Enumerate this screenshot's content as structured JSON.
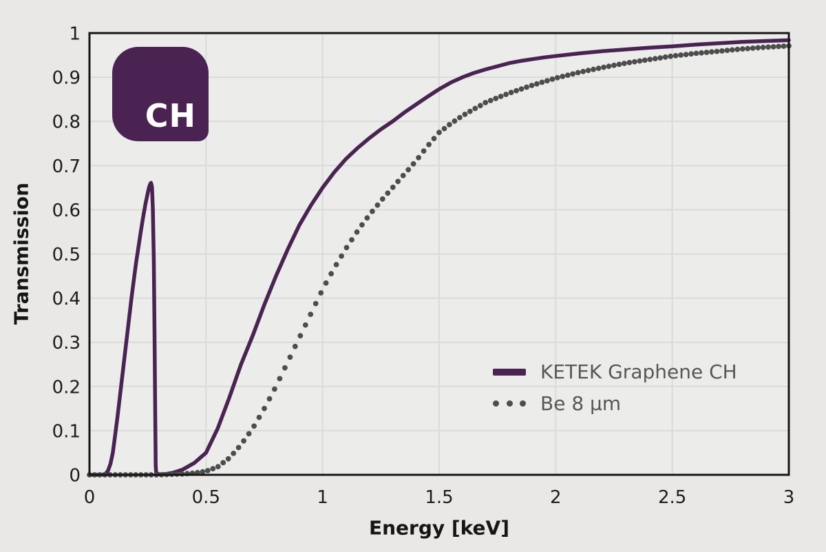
{
  "figure": {
    "background": "#e9e8e7",
    "plot_background": "#ececeb",
    "grid_color": "#dadad9",
    "axis_color": "#161616"
  },
  "badge": {
    "label": "CH",
    "background": "#4a2352",
    "text_color": "#ffffff"
  },
  "chart_data": {
    "type": "line",
    "title": "",
    "xlabel": "Energy [keV]",
    "ylabel": "Transmission",
    "xlim": [
      0,
      3
    ],
    "ylim": [
      0,
      1
    ],
    "x_tick_values": [
      0,
      0.5,
      1,
      1.5,
      2,
      2.5,
      3
    ],
    "x_tick_labels": [
      "0",
      "0.5",
      "1",
      "1.5",
      "2",
      "2.5",
      "3"
    ],
    "y_tick_values": [
      0,
      0.1,
      0.2,
      0.3,
      0.4,
      0.5,
      0.6,
      0.7,
      0.8,
      0.9,
      1
    ],
    "y_tick_labels": [
      "0",
      "0.1",
      "0.2",
      "0.3",
      "0.4",
      "0.5",
      "0.6",
      "0.7",
      "0.8",
      "0.9",
      "1"
    ],
    "grid": true,
    "legend_position": "lower-right",
    "series": [
      {
        "name": "KETEK Graphene CH",
        "line_style": "solid",
        "color": "#4a2352",
        "points": [
          [
            0,
            0
          ],
          [
            0.05,
            0
          ],
          [
            0.06,
            0.001
          ],
          [
            0.07,
            0.003
          ],
          [
            0.08,
            0.01
          ],
          [
            0.09,
            0.025
          ],
          [
            0.1,
            0.05
          ],
          [
            0.11,
            0.09
          ],
          [
            0.12,
            0.13
          ],
          [
            0.13,
            0.175
          ],
          [
            0.14,
            0.22
          ],
          [
            0.15,
            0.265
          ],
          [
            0.16,
            0.31
          ],
          [
            0.17,
            0.355
          ],
          [
            0.18,
            0.4
          ],
          [
            0.19,
            0.44
          ],
          [
            0.2,
            0.48
          ],
          [
            0.21,
            0.515
          ],
          [
            0.22,
            0.55
          ],
          [
            0.23,
            0.583
          ],
          [
            0.24,
            0.613
          ],
          [
            0.25,
            0.638
          ],
          [
            0.255,
            0.65
          ],
          [
            0.26,
            0.658
          ],
          [
            0.264,
            0.661
          ],
          [
            0.268,
            0.652
          ],
          [
            0.272,
            0.6
          ],
          [
            0.276,
            0.48
          ],
          [
            0.279,
            0.32
          ],
          [
            0.282,
            0.14
          ],
          [
            0.284,
            0.02
          ],
          [
            0.286,
            0.004
          ],
          [
            0.3,
            0.001
          ],
          [
            0.33,
            0.002
          ],
          [
            0.36,
            0.005
          ],
          [
            0.4,
            0.012
          ],
          [
            0.45,
            0.027
          ],
          [
            0.5,
            0.05
          ],
          [
            0.55,
            0.105
          ],
          [
            0.6,
            0.175
          ],
          [
            0.65,
            0.25
          ],
          [
            0.7,
            0.315
          ],
          [
            0.75,
            0.385
          ],
          [
            0.8,
            0.45
          ],
          [
            0.85,
            0.51
          ],
          [
            0.9,
            0.565
          ],
          [
            0.95,
            0.61
          ],
          [
            1.0,
            0.65
          ],
          [
            1.05,
            0.685
          ],
          [
            1.1,
            0.715
          ],
          [
            1.15,
            0.74
          ],
          [
            1.2,
            0.762
          ],
          [
            1.25,
            0.782
          ],
          [
            1.3,
            0.8
          ],
          [
            1.35,
            0.82
          ],
          [
            1.4,
            0.838
          ],
          [
            1.45,
            0.856
          ],
          [
            1.5,
            0.873
          ],
          [
            1.55,
            0.888
          ],
          [
            1.6,
            0.9
          ],
          [
            1.65,
            0.91
          ],
          [
            1.7,
            0.918
          ],
          [
            1.75,
            0.925
          ],
          [
            1.8,
            0.932
          ],
          [
            1.85,
            0.937
          ],
          [
            1.9,
            0.941
          ],
          [
            1.95,
            0.945
          ],
          [
            2.0,
            0.948
          ],
          [
            2.1,
            0.954
          ],
          [
            2.2,
            0.959
          ],
          [
            2.3,
            0.963
          ],
          [
            2.4,
            0.967
          ],
          [
            2.5,
            0.97
          ],
          [
            2.6,
            0.974
          ],
          [
            2.7,
            0.977
          ],
          [
            2.8,
            0.98
          ],
          [
            2.9,
            0.982
          ],
          [
            3.0,
            0.984
          ]
        ]
      },
      {
        "name": "Be 8 μm",
        "line_style": "dotted",
        "color": "#4d4d4d",
        "points": [
          [
            0,
            0
          ],
          [
            0.3,
            0
          ],
          [
            0.35,
            0.001
          ],
          [
            0.4,
            0.002
          ],
          [
            0.45,
            0.004
          ],
          [
            0.5,
            0.008
          ],
          [
            0.55,
            0.018
          ],
          [
            0.6,
            0.038
          ],
          [
            0.65,
            0.068
          ],
          [
            0.7,
            0.105
          ],
          [
            0.75,
            0.15
          ],
          [
            0.8,
            0.2
          ],
          [
            0.85,
            0.255
          ],
          [
            0.9,
            0.31
          ],
          [
            0.95,
            0.365
          ],
          [
            1.0,
            0.42
          ],
          [
            1.05,
            0.468
          ],
          [
            1.1,
            0.512
          ],
          [
            1.15,
            0.552
          ],
          [
            1.2,
            0.588
          ],
          [
            1.25,
            0.62
          ],
          [
            1.3,
            0.65
          ],
          [
            1.35,
            0.68
          ],
          [
            1.4,
            0.71
          ],
          [
            1.45,
            0.744
          ],
          [
            1.5,
            0.775
          ],
          [
            1.55,
            0.795
          ],
          [
            1.6,
            0.813
          ],
          [
            1.7,
            0.843
          ],
          [
            1.8,
            0.864
          ],
          [
            1.9,
            0.882
          ],
          [
            2.0,
            0.898
          ],
          [
            2.1,
            0.911
          ],
          [
            2.2,
            0.922
          ],
          [
            2.3,
            0.932
          ],
          [
            2.4,
            0.94
          ],
          [
            2.5,
            0.948
          ],
          [
            2.6,
            0.954
          ],
          [
            2.7,
            0.959
          ],
          [
            2.8,
            0.964
          ],
          [
            2.9,
            0.968
          ],
          [
            3.0,
            0.971
          ]
        ]
      }
    ]
  }
}
